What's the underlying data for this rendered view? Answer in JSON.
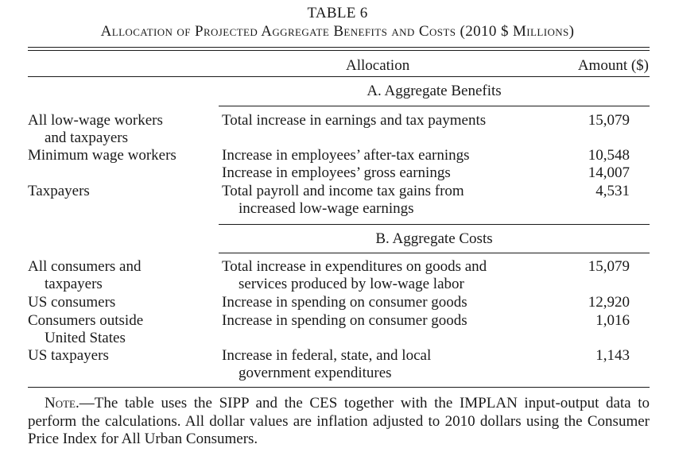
{
  "table": {
    "number": "TABLE 6",
    "title": "Allocation of Projected Aggregate Benefits and Costs (2010 $ Millions)"
  },
  "columns": {
    "allocation": "Allocation",
    "amount": "Amount ($)"
  },
  "sections": [
    {
      "heading": "A. Aggregate Benefits",
      "rows": [
        {
          "group": [
            "All low-wage workers",
            "and taxpayers"
          ],
          "items": [
            {
              "allocation": [
                "Total increase in earnings and tax payments"
              ],
              "amount": "15,079"
            }
          ]
        },
        {
          "group": [
            "Minimum wage workers"
          ],
          "items": [
            {
              "allocation": [
                "Increase in employees’ after-tax earnings"
              ],
              "amount": "10,548"
            },
            {
              "allocation": [
                "Increase in employees’ gross earnings"
              ],
              "amount": "14,007"
            }
          ]
        },
        {
          "group": [
            "Taxpayers"
          ],
          "items": [
            {
              "allocation": [
                "Total payroll and income tax gains from",
                "increased low-wage earnings"
              ],
              "amount": "4,531"
            }
          ]
        }
      ]
    },
    {
      "heading": "B. Aggregate Costs",
      "rows": [
        {
          "group": [
            "All consumers and",
            "taxpayers"
          ],
          "items": [
            {
              "allocation": [
                "Total increase in expenditures on goods and",
                "services produced by low-wage labor"
              ],
              "amount": "15,079"
            }
          ]
        },
        {
          "group": [
            "US consumers"
          ],
          "items": [
            {
              "allocation": [
                "Increase in spending on consumer goods"
              ],
              "amount": "12,920"
            }
          ]
        },
        {
          "group": [
            "Consumers outside",
            "United States"
          ],
          "items": [
            {
              "allocation": [
                "Increase in spending on consumer goods"
              ],
              "amount": "1,016"
            }
          ]
        },
        {
          "group": [
            "US taxpayers"
          ],
          "items": [
            {
              "allocation": [
                "Increase in federal, state, and local",
                "government expenditures"
              ],
              "amount": "1,143"
            }
          ]
        }
      ]
    }
  ],
  "note": {
    "label": "Note.",
    "dash": "—",
    "text": "The table uses the SIPP and the CES together with the IMPLAN input-output data to perform the calculations. All dollar values are inflation adjusted to 2010 dollars using the Consumer Price Index for All Urban Consumers."
  }
}
